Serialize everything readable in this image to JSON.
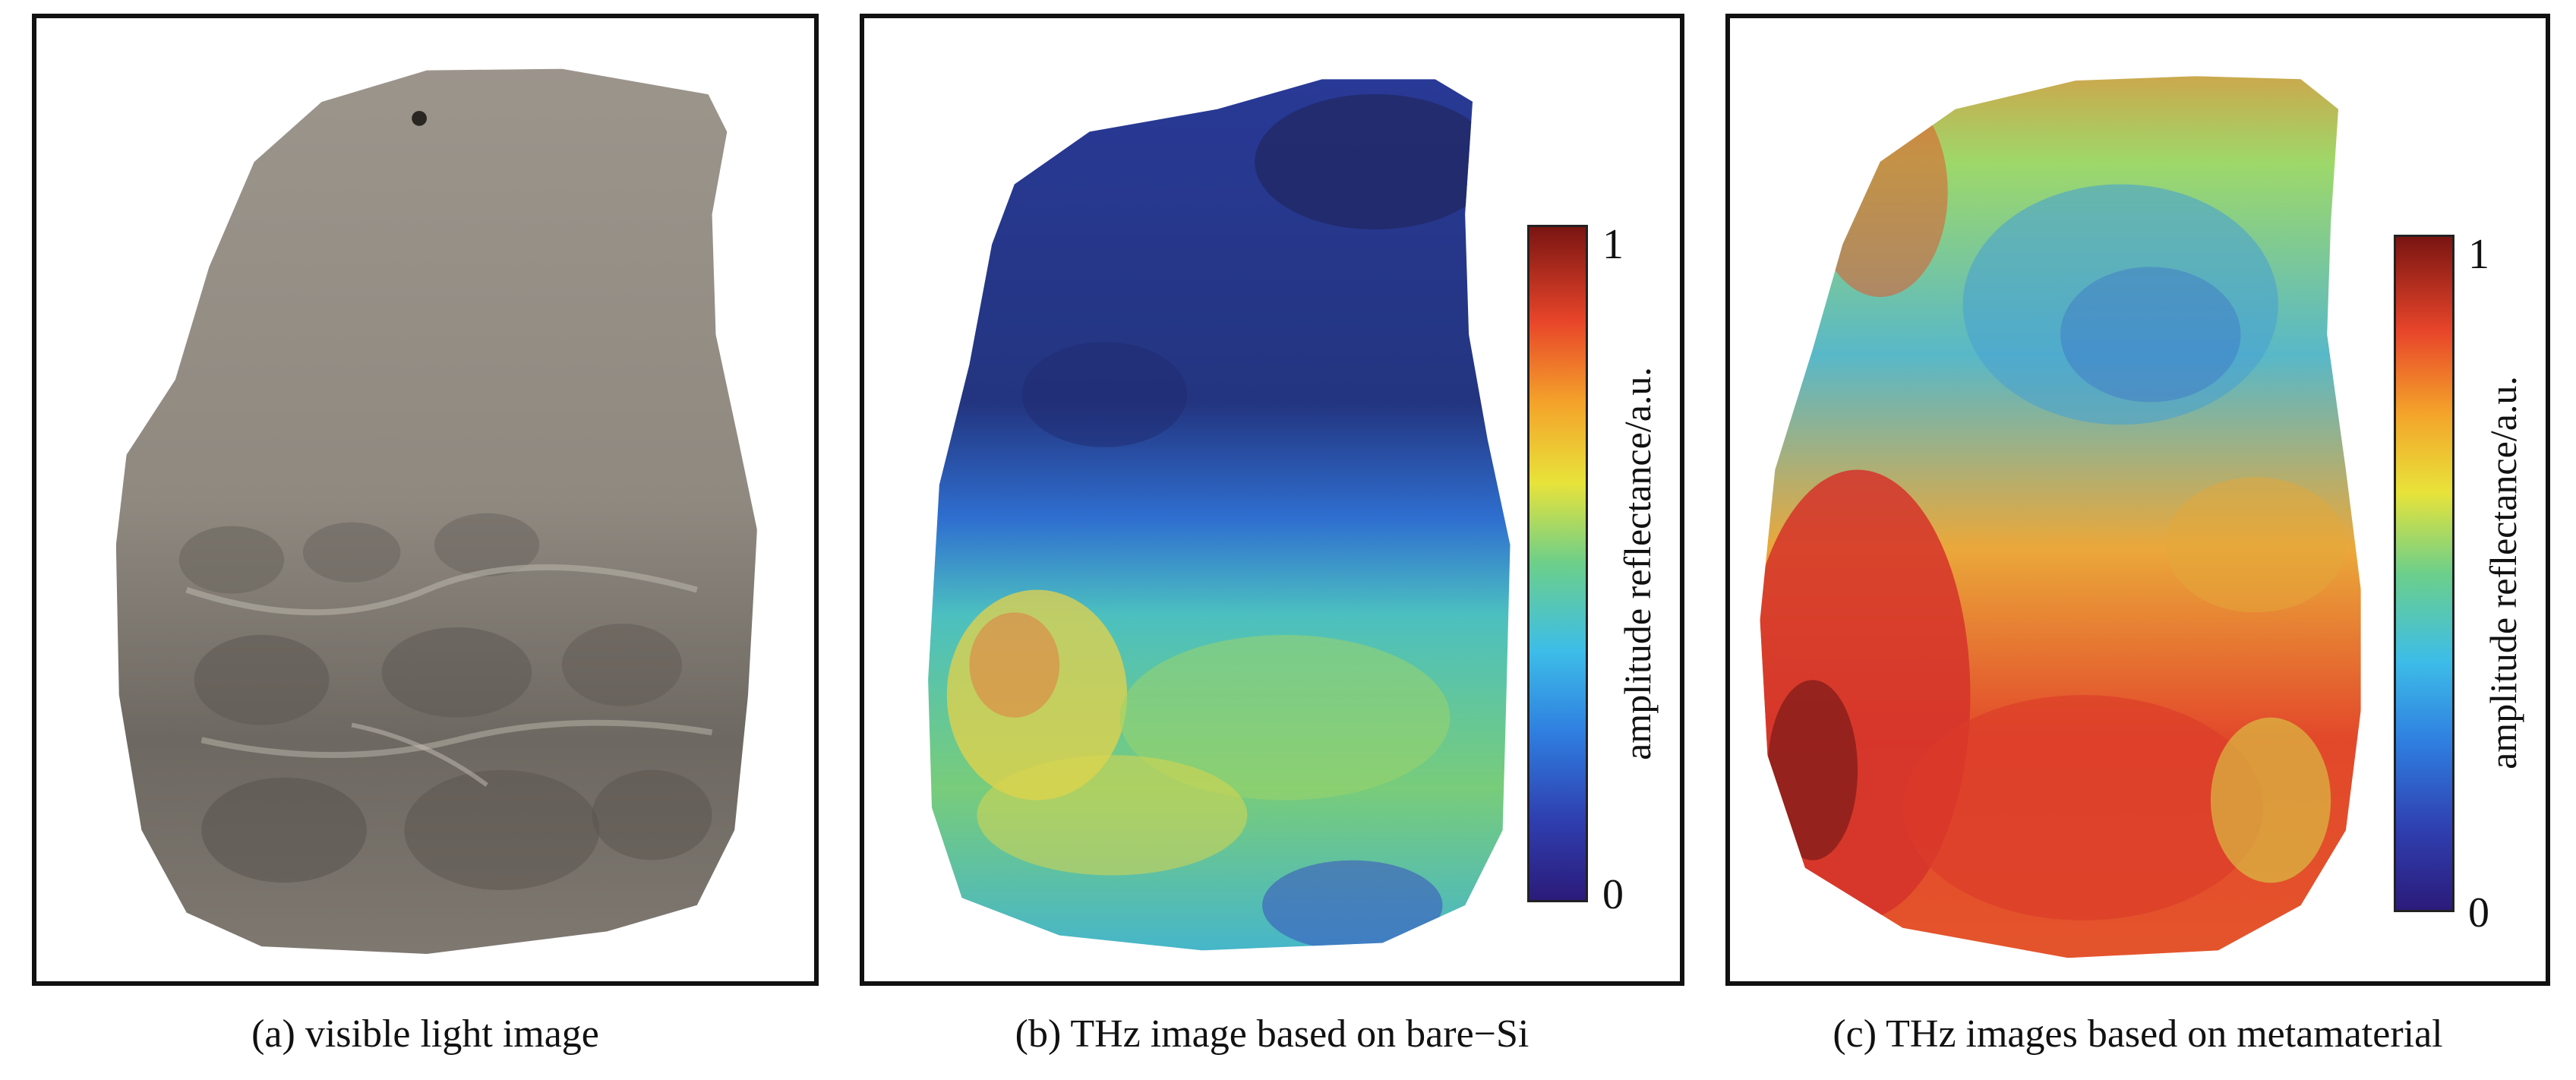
{
  "panels": [
    {
      "caption": "(a) visible light image"
    },
    {
      "caption": "(b) THz image based on bare−Si",
      "colorbar": {
        "max": "1",
        "min": "0",
        "label": "amplitude reflectance/a.u."
      }
    },
    {
      "caption": "(c) THz images based on metamaterial",
      "colorbar": {
        "max": "1",
        "min": "0",
        "label": "amplitude reflectance/a.u."
      }
    }
  ],
  "colors": {
    "frame": "#111111",
    "tooth_gray": "#8e8880",
    "thz_low": "#2f3fb0",
    "thz_high": "#e8452a"
  }
}
